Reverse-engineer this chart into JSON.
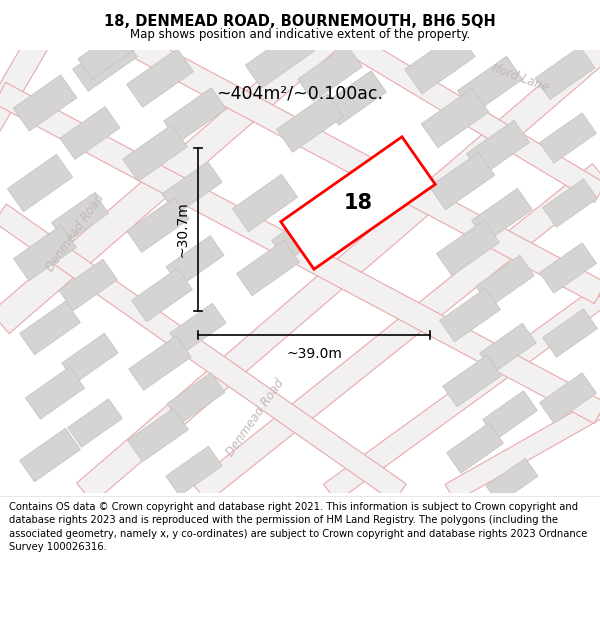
{
  "title": "18, DENMEAD ROAD, BOURNEMOUTH, BH6 5QH",
  "subtitle": "Map shows position and indicative extent of the property.",
  "area_label": "~404m²/~0.100ac.",
  "number_label": "18",
  "dim_width_label": "~39.0m",
  "dim_height_label": "~30.7m",
  "map_bg": "#f2f0f0",
  "road_fill_color": "#f2f0f0",
  "road_outline_color": "#e8aaaa",
  "building_color": "#d6d3d3",
  "building_outline": "#c8c4c4",
  "red_plot_color": "#ff0000",
  "road_label_color": "#c0b8b8",
  "footer_text": "Contains OS data © Crown copyright and database right 2021. This information is subject to Crown copyright and database rights 2023 and is reproduced with the permission of HM Land Registry. The polygons (including the associated geometry, namely x, y co-ordinates) are subject to Crown copyright and database rights 2023 Ordnance Survey 100026316.",
  "title_fontsize": 10.5,
  "subtitle_fontsize": 8.5,
  "footer_fontsize": 7.2,
  "figsize": [
    6.0,
    6.25
  ],
  "dpi": 100
}
